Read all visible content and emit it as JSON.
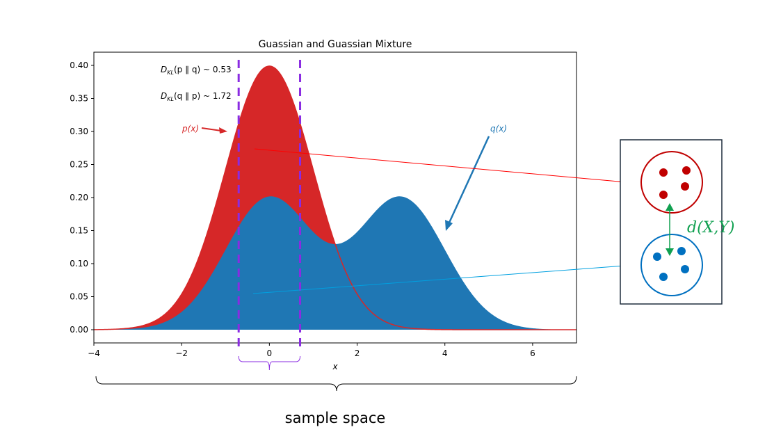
{
  "chart_data": {
    "type": "area",
    "title": "Guassian and Guassian Mixture",
    "xlabel": "x",
    "ylabel": "",
    "xlim": [
      -4,
      7
    ],
    "ylim": [
      -0.02,
      0.42
    ],
    "x_ticks": [
      -4,
      -2,
      0,
      2,
      4,
      6
    ],
    "x_tick_labels": [
      "−4",
      "−2",
      "0",
      "2",
      "4",
      "6"
    ],
    "y_ticks": [
      0.0,
      0.05,
      0.1,
      0.15,
      0.2,
      0.25,
      0.3,
      0.35,
      0.4
    ],
    "y_tick_labels": [
      "0.00",
      "0.05",
      "0.10",
      "0.15",
      "0.20",
      "0.25",
      "0.30",
      "0.35",
      "0.40"
    ],
    "grid": false,
    "series": [
      {
        "name": "p(x)",
        "description": "Gaussian N(0,1)",
        "mean": 0,
        "std": 1,
        "peak": 0.4,
        "color": "#d62728"
      },
      {
        "name": "q(x)",
        "description": "Mixture 0.5·N(0,1) + 0.5·N(3,1)",
        "components": [
          {
            "weight": 0.5,
            "mean": 0,
            "std": 1
          },
          {
            "weight": 0.5,
            "mean": 3,
            "std": 1
          }
        ],
        "peak": 0.2,
        "color": "#1f77b4"
      }
    ],
    "window": {
      "x_min": -0.7,
      "x_max": 0.7,
      "color": "#8a2be2"
    },
    "annotations": {
      "kl_pq": {
        "prefix": "D",
        "sub": "KL",
        "args": "(p ∥ q) ~ 0.53"
      },
      "kl_qp": {
        "prefix": "D",
        "sub": "KL",
        "args": "(q ∥ p) ~ 1.72"
      },
      "p_label": "p(x)",
      "q_label": "q(x)"
    }
  },
  "side_panel": {
    "distance_label": "d(X,Y)",
    "distance_color": "#10a050",
    "set_x_color": "#c00000",
    "set_y_color": "#0070c0"
  },
  "caption": "sample space"
}
